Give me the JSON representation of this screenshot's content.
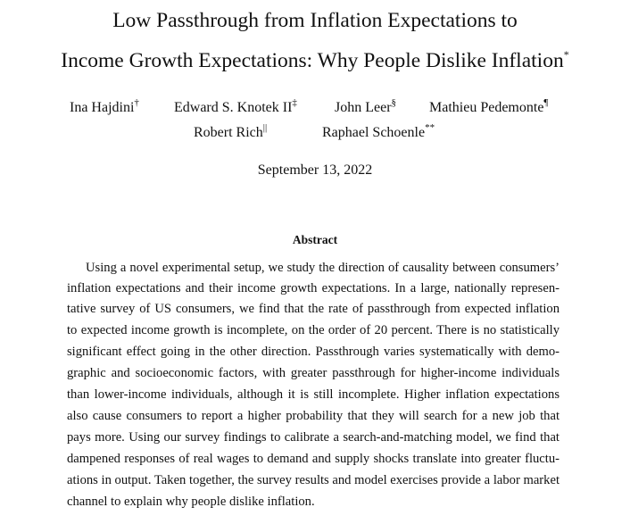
{
  "paper": {
    "title_line_1": "Low Passthrough from Inflation Expectations to",
    "title_line_2": "Income Growth Expectations: Why People Dislike Inflation",
    "title_mark": "*",
    "authors": [
      {
        "name": "Ina Hajdini",
        "mark": "†"
      },
      {
        "name": "Edward S. Knotek II",
        "mark": "‡"
      },
      {
        "name": "John Leer",
        "mark": "§"
      },
      {
        "name": "Mathieu Pedemonte",
        "mark": "¶"
      },
      {
        "name": "Robert Rich",
        "mark": "||"
      },
      {
        "name": "Raphael Schoenle",
        "mark": "**"
      }
    ],
    "date": "September 13, 2022"
  },
  "abstract": {
    "heading": "Abstract",
    "lines": [
      "Using a novel experimental setup, we study the direction of causality between consumers’",
      "inflation expectations and their income growth expectations.  In a large, nationally represen-",
      "tative survey of US consumers, we find that the rate of passthrough from expected inflation",
      "to expected income growth is incomplete, on the order of 20 percent.  There is no statistically",
      "significant effect going in the other direction.  Passthrough varies systematically with demo-",
      "graphic and socioeconomic factors, with greater passthrough for higher-income individuals",
      "than lower-income individuals, although it is still incomplete.  Higher inflation expectations",
      "also cause consumers to report a higher probability that they will search for a new job that",
      "pays more.  Using our survey findings to calibrate a search-and-matching model, we find that",
      "dampened responses of real wages to demand and supply shocks translate into greater fluctu-",
      "ations in output.  Taken together, the survey results and model exercises provide a labor market",
      "channel to explain why people dislike inflation."
    ]
  }
}
